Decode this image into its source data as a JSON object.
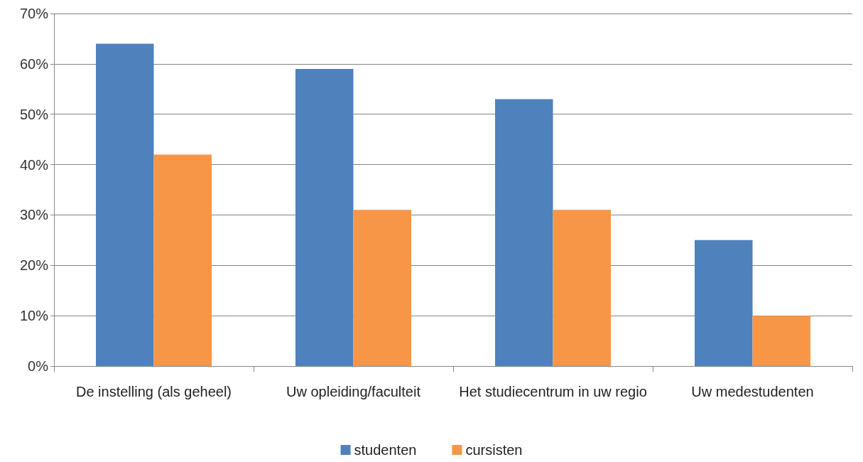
{
  "chart_data": {
    "type": "bar",
    "categories": [
      "De instelling (als geheel)",
      "Uw opleiding/faculteit",
      "Het studiecentrum in uw regio",
      "Uw medestudenten"
    ],
    "series": [
      {
        "name": "studenten",
        "color": "#4f81bd",
        "values": [
          64,
          59,
          53,
          25
        ]
      },
      {
        "name": "cursisten",
        "color": "#f79646",
        "values": [
          42,
          31,
          31,
          10
        ]
      }
    ],
    "ylim": [
      0,
      70
    ],
    "yticks": [
      {
        "value": 0,
        "label": "0%"
      },
      {
        "value": 10,
        "label": "10%"
      },
      {
        "value": 20,
        "label": "20%"
      },
      {
        "value": 30,
        "label": "30%"
      },
      {
        "value": 40,
        "label": "40%"
      },
      {
        "value": 50,
        "label": "50%"
      },
      {
        "value": 60,
        "label": "60%"
      },
      {
        "value": 70,
        "label": "70%"
      }
    ],
    "grid": "y",
    "legend": "bottom"
  }
}
